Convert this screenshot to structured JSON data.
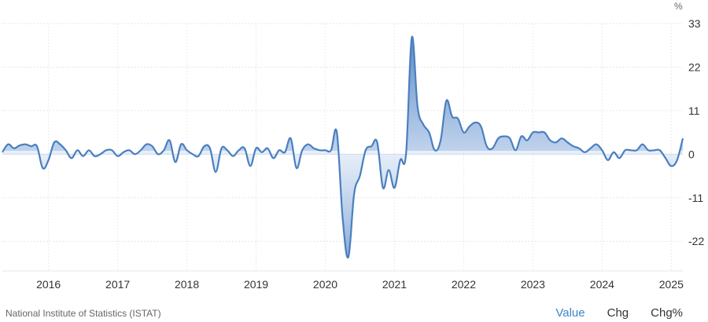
{
  "chart_data": {
    "type": "area",
    "y_unit": "%",
    "ylim": [
      -29.5,
      33
    ],
    "yticks": [
      33,
      22,
      11,
      0,
      -11,
      -22
    ],
    "x_tick_labels": [
      "2016",
      "2017",
      "2018",
      "2019",
      "2020",
      "2021",
      "2022",
      "2023",
      "2024",
      "2025"
    ],
    "grid": true,
    "color": "#4a7fbf",
    "series": [
      {
        "points": [
          [
            "2015-05",
            0.5
          ],
          [
            "2015-06",
            2.5
          ],
          [
            "2015-07",
            1.5
          ],
          [
            "2015-08",
            2.2
          ],
          [
            "2015-09",
            2.5
          ],
          [
            "2015-10",
            2.0
          ],
          [
            "2015-11",
            2.0
          ],
          [
            "2015-12",
            -3.5
          ],
          [
            "2016-01",
            -1.5
          ],
          [
            "2016-02",
            3.0
          ],
          [
            "2016-03",
            2.5
          ],
          [
            "2016-04",
            1.0
          ],
          [
            "2016-05",
            -1.0
          ],
          [
            "2016-06",
            1.0
          ],
          [
            "2016-07",
            -0.5
          ],
          [
            "2016-08",
            1.0
          ],
          [
            "2016-09",
            -0.5
          ],
          [
            "2016-10",
            0.0
          ],
          [
            "2016-11",
            1.0
          ],
          [
            "2016-12",
            1.0
          ],
          [
            "2017-01",
            -0.5
          ],
          [
            "2017-02",
            0.5
          ],
          [
            "2017-03",
            1.0
          ],
          [
            "2017-04",
            0.0
          ],
          [
            "2017-05",
            1.0
          ],
          [
            "2017-06",
            2.5
          ],
          [
            "2017-07",
            2.0
          ],
          [
            "2017-08",
            0.0
          ],
          [
            "2017-09",
            1.0
          ],
          [
            "2017-10",
            3.5
          ],
          [
            "2017-11",
            -2.0
          ],
          [
            "2017-12",
            2.5
          ],
          [
            "2018-01",
            1.0
          ],
          [
            "2018-02",
            0.0
          ],
          [
            "2018-03",
            -0.5
          ],
          [
            "2018-04",
            2.0
          ],
          [
            "2018-05",
            1.5
          ],
          [
            "2018-06",
            -4.5
          ],
          [
            "2018-07",
            1.5
          ],
          [
            "2018-08",
            1.0
          ],
          [
            "2018-09",
            -0.5
          ],
          [
            "2018-10",
            1.0
          ],
          [
            "2018-11",
            1.5
          ],
          [
            "2018-12",
            -3.0
          ],
          [
            "2019-01",
            1.5
          ],
          [
            "2019-02",
            0.5
          ],
          [
            "2019-03",
            1.5
          ],
          [
            "2019-04",
            -1.0
          ],
          [
            "2019-05",
            1.0
          ],
          [
            "2019-06",
            0.5
          ],
          [
            "2019-07",
            4.0
          ],
          [
            "2019-08",
            -3.5
          ],
          [
            "2019-09",
            1.0
          ],
          [
            "2019-10",
            2.5
          ],
          [
            "2019-11",
            1.5
          ],
          [
            "2019-12",
            1.0
          ],
          [
            "2020-01",
            1.0
          ],
          [
            "2020-02",
            1.0
          ],
          [
            "2020-03",
            5.5
          ],
          [
            "2020-04",
            -16.0
          ],
          [
            "2020-05",
            -26.0
          ],
          [
            "2020-06",
            -10.0
          ],
          [
            "2020-07",
            -5.5
          ],
          [
            "2020-08",
            1.0
          ],
          [
            "2020-09",
            2.0
          ],
          [
            "2020-10",
            3.0
          ],
          [
            "2020-11",
            -8.5
          ],
          [
            "2020-12",
            -4.0
          ],
          [
            "2021-01",
            -8.5
          ],
          [
            "2021-02",
            -1.5
          ],
          [
            "2021-03",
            0.0
          ],
          [
            "2021-04",
            29.5
          ],
          [
            "2021-05",
            12.0
          ],
          [
            "2021-06",
            7.5
          ],
          [
            "2021-07",
            5.5
          ],
          [
            "2021-08",
            1.0
          ],
          [
            "2021-09",
            3.5
          ],
          [
            "2021-10",
            13.5
          ],
          [
            "2021-11",
            9.5
          ],
          [
            "2021-12",
            9.0
          ],
          [
            "2022-01",
            5.5
          ],
          [
            "2022-02",
            7.0
          ],
          [
            "2022-03",
            8.0
          ],
          [
            "2022-04",
            7.0
          ],
          [
            "2022-05",
            2.0
          ],
          [
            "2022-06",
            1.5
          ],
          [
            "2022-07",
            4.0
          ],
          [
            "2022-08",
            4.5
          ],
          [
            "2022-09",
            4.0
          ],
          [
            "2022-10",
            1.0
          ],
          [
            "2022-11",
            4.5
          ],
          [
            "2022-12",
            3.5
          ],
          [
            "2023-01",
            5.5
          ],
          [
            "2023-02",
            5.5
          ],
          [
            "2023-03",
            5.5
          ],
          [
            "2023-04",
            3.5
          ],
          [
            "2023-05",
            3.0
          ],
          [
            "2023-06",
            4.0
          ],
          [
            "2023-07",
            3.0
          ],
          [
            "2023-08",
            2.0
          ],
          [
            "2023-09",
            1.5
          ],
          [
            "2023-10",
            0.5
          ],
          [
            "2023-11",
            1.5
          ],
          [
            "2023-12",
            2.5
          ],
          [
            "2024-01",
            1.0
          ],
          [
            "2024-02",
            -1.5
          ],
          [
            "2024-03",
            0.5
          ],
          [
            "2024-04",
            -1.0
          ],
          [
            "2024-05",
            1.0
          ],
          [
            "2024-06",
            1.0
          ],
          [
            "2024-07",
            1.0
          ],
          [
            "2024-08",
            2.5
          ],
          [
            "2024-09",
            1.0
          ],
          [
            "2024-10",
            1.0
          ],
          [
            "2024-11",
            1.0
          ],
          [
            "2024-12",
            -1.0
          ],
          [
            "2025-01",
            -3.0
          ],
          [
            "2025-02",
            -1.5
          ],
          [
            "2025-03",
            4.0
          ]
        ]
      }
    ]
  },
  "source_text": "National Institute of Statistics (ISTAT)",
  "toggles": {
    "value": "Value",
    "chg": "Chg",
    "chg_pct": "Chg%"
  }
}
